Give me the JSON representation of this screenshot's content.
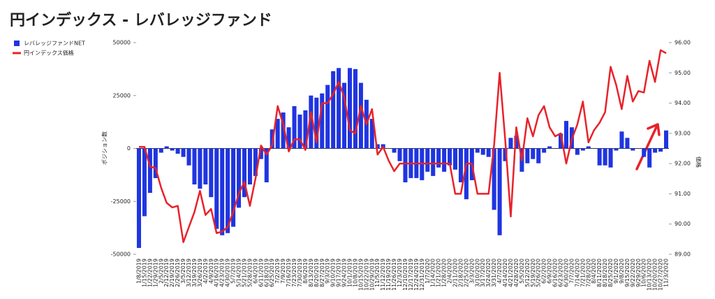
{
  "chart_data": {
    "type": "bar_line",
    "title": "円インデックス - レバレッジファンド",
    "y_label": "ポジション数",
    "y2_label": "価格",
    "categories": [
      "1/8/2019",
      "1/15/2019",
      "1/22/2019",
      "1/29/2019",
      "2/5/2019",
      "2/12/2019",
      "2/19/2019",
      "2/26/2019",
      "3/5/2019",
      "3/12/2019",
      "3/19/2019",
      "3/26/2019",
      "4/2/2019",
      "4/9/2019",
      "4/16/2019",
      "4/23/2019",
      "4/30/2019",
      "5/7/2019",
      "5/14/2019",
      "5/21/2019",
      "5/28/2019",
      "6/4/2019",
      "6/11/2019",
      "6/18/2019",
      "6/25/2019",
      "7/2/2019",
      "7/9/2019",
      "7/16/2019",
      "7/23/2019",
      "7/30/2019",
      "8/6/2019",
      "8/13/2019",
      "8/20/2019",
      "8/27/2019",
      "9/3/2019",
      "9/10/2019",
      "9/17/2019",
      "9/24/2019",
      "10/1/2019",
      "10/8/2019",
      "10/15/2019",
      "10/22/2019",
      "10/29/2019",
      "11/5/2019",
      "11/12/2019",
      "11/19/2019",
      "11/26/2019",
      "12/3/2019",
      "12/10/2019",
      "12/17/2019",
      "12/24/2019",
      "12/31/2019",
      "1/7/2020",
      "1/14/2020",
      "1/21/2020",
      "1/28/2020",
      "2/4/2020",
      "2/11/2020",
      "2/18/2020",
      "2/25/2020",
      "3/3/2020",
      "3/10/2020",
      "3/17/2020",
      "3/24/2020",
      "3/31/2020",
      "4/7/2020",
      "4/14/2020",
      "4/21/2020",
      "4/28/2020",
      "5/5/2020",
      "5/12/2020",
      "5/19/2020",
      "5/26/2020",
      "6/2/2020",
      "6/9/2020",
      "6/16/2020",
      "6/23/2020",
      "6/30/2020",
      "7/7/2020",
      "7/14/2020",
      "7/21/2020",
      "7/28/2020",
      "8/4/2020",
      "8/11/2020",
      "8/18/2020",
      "8/25/2020",
      "9/1/2020",
      "9/8/2020",
      "9/15/2020",
      "9/22/2020",
      "9/29/2020",
      "10/6/2020",
      "10/13/2020",
      "10/20/2020",
      "10/27/2020",
      "11/3/2020"
    ],
    "series": [
      {
        "name": "レバレッジファンドNET",
        "type": "bar",
        "color": "#1f35e0",
        "values": [
          -47000,
          -32000,
          -21000,
          -14000,
          -2000,
          1000,
          -1000,
          -2500,
          -4000,
          -8000,
          -17000,
          -19000,
          -17000,
          -23000,
          -38000,
          -41000,
          -40000,
          -37000,
          -28000,
          -23000,
          -17000,
          -13000,
          -5000,
          -16000,
          9000,
          14000,
          17000,
          10000,
          20000,
          16000,
          18000,
          25000,
          24000,
          26000,
          30000,
          36500,
          38000,
          31000,
          38000,
          37500,
          31000,
          23000,
          14000,
          2000,
          2000,
          0,
          -2000,
          -6000,
          -16000,
          -14000,
          -14000,
          -15000,
          -11000,
          -13000,
          -9000,
          -11000,
          -8000,
          -10000,
          -16000,
          -24000,
          -15000,
          -2000,
          -3000,
          -4000,
          -29000,
          -41000,
          -6000,
          5000,
          6000,
          -11000,
          -7000,
          -5000,
          -7000,
          -2000,
          1000,
          0,
          7000,
          13000,
          10000,
          -3000,
          -1000,
          1000,
          0,
          -8000,
          -8000,
          -9000,
          -1000,
          8000,
          5000,
          -1000,
          0,
          -4000,
          -9000,
          -2000,
          -1500,
          8500
        ]
      },
      {
        "name": "円インデックス価格",
        "type": "line",
        "axis": "y2",
        "color": "#e8222a",
        "values": [
          92.55,
          92.55,
          91.9,
          91.85,
          91.2,
          90.7,
          90.55,
          90.6,
          89.4,
          89.9,
          90.4,
          91.1,
          90.3,
          90.5,
          89.7,
          89.75,
          89.9,
          90.4,
          91.0,
          91.4,
          90.6,
          91.5,
          92.6,
          92.3,
          92.6,
          93.9,
          93.3,
          92.4,
          92.8,
          92.8,
          92.45,
          93.7,
          92.7,
          94.0,
          94.0,
          94.3,
          94.7,
          94.2,
          93.1,
          93.0,
          93.9,
          93.3,
          93.8,
          92.3,
          92.55,
          92.1,
          91.75,
          92.0,
          92.0,
          92.0,
          92.0,
          92.0,
          92.0,
          92.0,
          92.0,
          92.0,
          92.0,
          91.0,
          91.0,
          92.0,
          92.0,
          91.0,
          91.0,
          91.0,
          92.6,
          95.0,
          92.8,
          90.25,
          93.2,
          92.1,
          93.5,
          92.9,
          93.6,
          93.9,
          93.2,
          92.9,
          93.0,
          92.0,
          92.8,
          93.3,
          94.05,
          92.7,
          93.1,
          93.35,
          93.7,
          95.2,
          94.6,
          93.8,
          94.9,
          94.05,
          94.4,
          94.35,
          95.4,
          94.7,
          95.75,
          95.65
        ]
      }
    ],
    "ylim": [
      -50000,
      50000
    ],
    "yticks": [
      -50000,
      -25000,
      0,
      25000,
      50000
    ],
    "y2lim": [
      89,
      96
    ],
    "y2ticks": [
      {
        "value": 89,
        "label": "89.00"
      },
      {
        "value": 90,
        "label": "90.00"
      },
      {
        "value": 91,
        "label": "91.00"
      },
      {
        "value": 92,
        "label": "92.00"
      },
      {
        "value": 93,
        "label": "93.00"
      },
      {
        "value": 94,
        "label": "94.00"
      },
      {
        "value": 95,
        "label": "95.00"
      },
      {
        "value": 96,
        "label": "96.00"
      }
    ],
    "legend": "top-left"
  }
}
